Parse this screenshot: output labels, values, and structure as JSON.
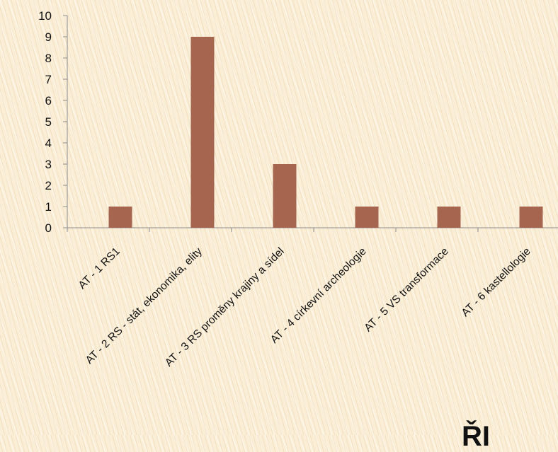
{
  "chart_data": {
    "type": "bar",
    "categories": [
      "AT - 1 RS1",
      "AT - 2 RS - stát, ekonomika, elity",
      "AT - 3 RS proměny krajiny a sídel",
      "AT - 4 církevní archeologie",
      "AT - 5 VS transformace",
      "AT - 6 kastellologie"
    ],
    "values": [
      1,
      9,
      3,
      1,
      1,
      1
    ],
    "ylim": [
      0,
      10
    ],
    "yticks": [
      0,
      1,
      2,
      3,
      4,
      5,
      6,
      7,
      8,
      9,
      10
    ],
    "title": "",
    "xlabel": "",
    "ylabel": "",
    "grid": false,
    "bar_color": "#a5654f",
    "axis_color": "#8c8c8c"
  },
  "footer": {
    "partial_text": "ŘI"
  }
}
